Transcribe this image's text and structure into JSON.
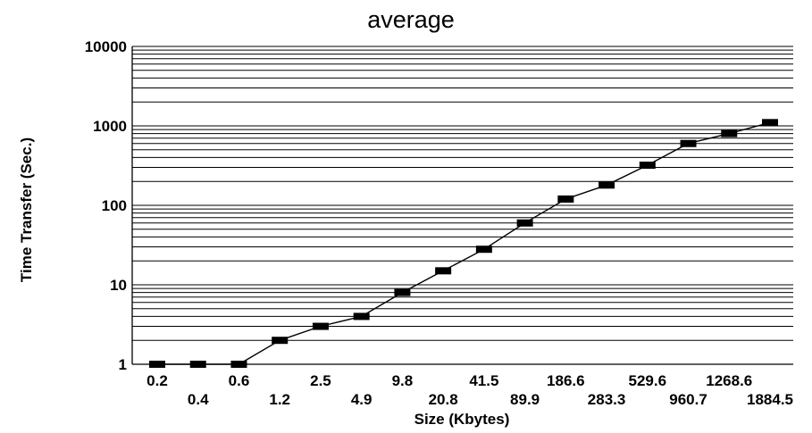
{
  "chart_data": {
    "type": "line",
    "title": "average",
    "xlabel": "Size (Kbytes)",
    "ylabel": "Time Transfer (Sec.)",
    "yscale": "log",
    "ylim": [
      1,
      10000
    ],
    "yticks": [
      "1",
      "10",
      "100",
      "1000",
      "10000"
    ],
    "grid": true,
    "categories": [
      "0.2",
      "0.4",
      "0.6",
      "1.2",
      "2.5",
      "4.9",
      "9.8",
      "20.8",
      "41.5",
      "89.9",
      "186.6",
      "283.3",
      "529.6",
      "960.7",
      "1268.6",
      "1884.5"
    ],
    "series": [
      {
        "values": [
          1,
          1,
          1,
          2,
          3,
          4,
          8,
          15,
          28,
          60,
          120,
          180,
          320,
          600,
          800,
          1100
        ]
      }
    ]
  }
}
